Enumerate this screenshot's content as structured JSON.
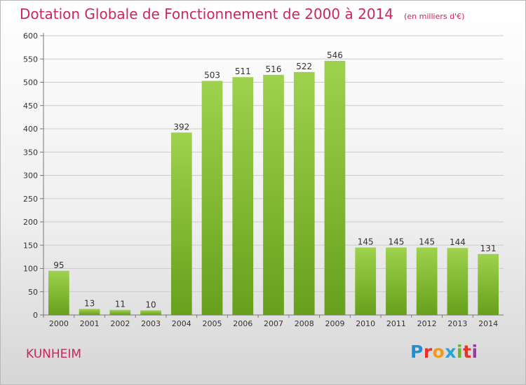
{
  "header": {
    "title": "Dotation Globale de Fonctionnement de 2000 à 2014",
    "subtitle": "(en milliers d'€)"
  },
  "footer": {
    "city": "KUNHEIM",
    "logo": "Proxiti",
    "logo_colors": [
      "#1f8fd6",
      "#e8332a",
      "#f29a1f",
      "#2aa3d8",
      "#6ab42d",
      "#e8332a",
      "#8e3f98"
    ]
  },
  "chart_data": {
    "type": "bar",
    "categories": [
      "2000",
      "2001",
      "2002",
      "2003",
      "2004",
      "2005",
      "2006",
      "2007",
      "2008",
      "2009",
      "2010",
      "2011",
      "2012",
      "2013",
      "2014"
    ],
    "values": [
      95,
      13,
      11,
      10,
      392,
      503,
      511,
      516,
      522,
      546,
      145,
      145,
      145,
      144,
      131
    ],
    "ylim": [
      0,
      600
    ],
    "yticks": [
      0,
      50,
      100,
      150,
      200,
      250,
      300,
      350,
      400,
      450,
      500,
      550,
      600
    ],
    "grid": true,
    "bar_color": "#8cc63f"
  }
}
